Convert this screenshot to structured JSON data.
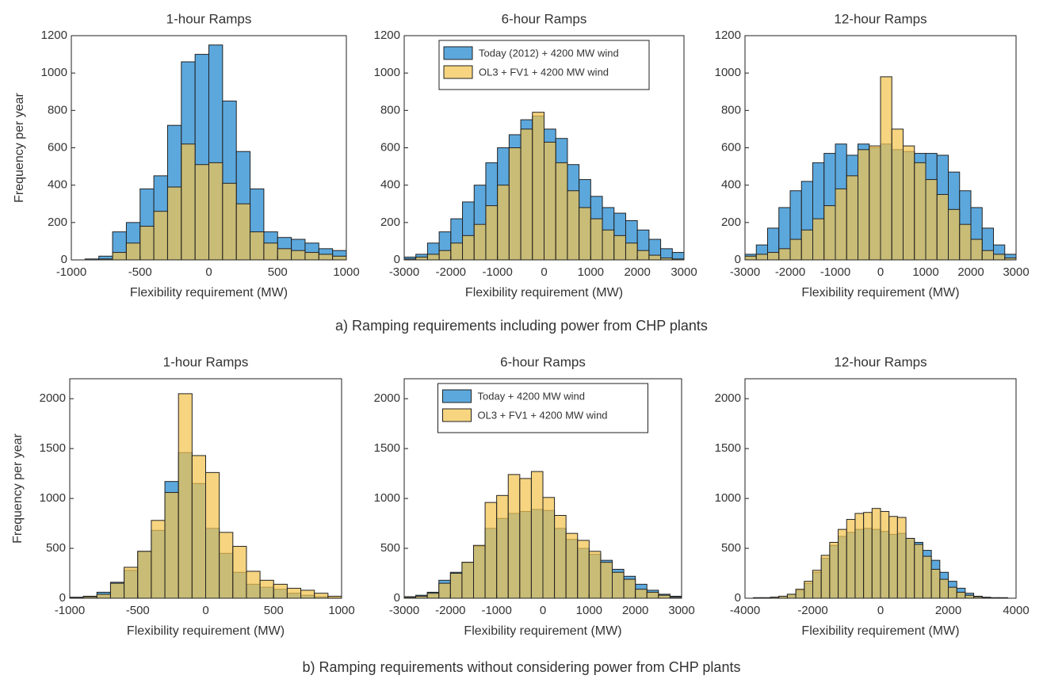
{
  "captions": [
    "a) Ramping requirements including power from CHP plants",
    "b) Ramping requirements without considering power from CHP plants"
  ],
  "chart_data": [
    {
      "type": "histogram",
      "title": "1-hour Ramps",
      "xlabel": "Flexibility requirement (MW)",
      "ylabel": "Frequency per year",
      "xlim": [
        -1000,
        1000
      ],
      "xticks": [
        -1000,
        -500,
        0,
        500,
        1000
      ],
      "ylim": [
        0,
        1200
      ],
      "yticks": [
        0,
        200,
        400,
        600,
        800,
        1000,
        1200
      ],
      "bins": [
        -1000,
        -900,
        -800,
        -700,
        -600,
        -500,
        -400,
        -300,
        -200,
        -100,
        0,
        100,
        200,
        300,
        400,
        500,
        600,
        700,
        800,
        900,
        1000
      ],
      "series": [
        {
          "color": "#4a9ed9",
          "values": [
            0,
            5,
            20,
            150,
            200,
            380,
            450,
            720,
            1060,
            1100,
            1150,
            850,
            580,
            380,
            150,
            120,
            110,
            90,
            60,
            50
          ]
        },
        {
          "color": "#f3c44f",
          "values": [
            0,
            0,
            5,
            40,
            90,
            180,
            260,
            390,
            620,
            510,
            520,
            410,
            300,
            150,
            90,
            60,
            50,
            40,
            30,
            20
          ]
        }
      ]
    },
    {
      "type": "histogram",
      "title": "6-hour Ramps",
      "xlabel": "Flexibility requirement (MW)",
      "xlim": [
        -3000,
        3000
      ],
      "xticks": [
        -3000,
        -2000,
        -1000,
        0,
        1000,
        2000,
        3000
      ],
      "ylim": [
        0,
        1200
      ],
      "yticks": [
        0,
        200,
        400,
        600,
        800,
        1000,
        1200
      ],
      "bins": [
        -3000,
        -2750,
        -2500,
        -2250,
        -2000,
        -1750,
        -1500,
        -1250,
        -1000,
        -750,
        -500,
        -250,
        0,
        250,
        500,
        750,
        1000,
        1250,
        1500,
        1750,
        2000,
        2250,
        2500,
        2750,
        3000
      ],
      "legend": "upper center",
      "series": [
        {
          "name": "Today (2012) + 4200 MW wind",
          "color": "#4a9ed9",
          "values": [
            15,
            30,
            90,
            150,
            220,
            310,
            400,
            520,
            600,
            670,
            750,
            770,
            700,
            650,
            510,
            430,
            340,
            280,
            250,
            210,
            160,
            110,
            60,
            40
          ]
        },
        {
          "name": "OL3 + FV1 + 4200 MW wind",
          "color": "#f3c44f",
          "values": [
            5,
            15,
            30,
            50,
            90,
            130,
            190,
            290,
            400,
            600,
            700,
            790,
            630,
            520,
            370,
            280,
            220,
            160,
            130,
            90,
            50,
            25,
            10,
            5
          ]
        }
      ]
    },
    {
      "type": "histogram",
      "title": "12-hour Ramps",
      "xlabel": "Flexibility requirement (MW)",
      "xlim": [
        -3000,
        3000
      ],
      "xticks": [
        -3000,
        -2000,
        -1000,
        0,
        1000,
        2000,
        3000
      ],
      "ylim": [
        0,
        1200
      ],
      "yticks": [
        0,
        200,
        400,
        600,
        800,
        1000,
        1200
      ],
      "bins": [
        -3000,
        -2750,
        -2500,
        -2250,
        -2000,
        -1750,
        -1500,
        -1250,
        -1000,
        -750,
        -500,
        -250,
        0,
        250,
        500,
        750,
        1000,
        1250,
        1500,
        1750,
        2000,
        2250,
        2500,
        2750,
        3000
      ],
      "series": [
        {
          "color": "#4a9ed9",
          "values": [
            30,
            80,
            170,
            280,
            370,
            420,
            520,
            570,
            620,
            560,
            620,
            600,
            620,
            590,
            580,
            570,
            570,
            560,
            470,
            370,
            280,
            170,
            80,
            30
          ]
        },
        {
          "color": "#f3c44f",
          "values": [
            20,
            30,
            40,
            60,
            110,
            160,
            220,
            290,
            380,
            450,
            590,
            610,
            980,
            700,
            610,
            520,
            430,
            350,
            270,
            190,
            110,
            50,
            30,
            10
          ]
        }
      ]
    },
    {
      "type": "histogram",
      "title": "1-hour Ramps",
      "xlabel": "Flexibility requirement (MW)",
      "ylabel": "Frequency per year",
      "xlim": [
        -1000,
        1000
      ],
      "xticks": [
        -1000,
        -500,
        0,
        500,
        1000
      ],
      "ylim": [
        0,
        2200
      ],
      "yticks": [
        0,
        500,
        1000,
        1500,
        2000
      ],
      "bins": [
        -1000,
        -900,
        -800,
        -700,
        -600,
        -500,
        -400,
        -300,
        -200,
        -100,
        0,
        100,
        200,
        300,
        400,
        500,
        600,
        700,
        800,
        900,
        1000
      ],
      "series": [
        {
          "color": "#4a9ed9",
          "values": [
            10,
            20,
            60,
            160,
            280,
            470,
            680,
            1170,
            1460,
            1150,
            700,
            450,
            260,
            140,
            110,
            90,
            50,
            30,
            15,
            5
          ]
        },
        {
          "color": "#f3c44f",
          "values": [
            5,
            15,
            40,
            150,
            310,
            470,
            780,
            1060,
            2050,
            1430,
            1260,
            660,
            520,
            270,
            180,
            140,
            100,
            80,
            50,
            20
          ]
        }
      ]
    },
    {
      "type": "histogram",
      "title": "6-hour Ramps",
      "xlabel": "Flexibility requirement (MW)",
      "xlim": [
        -3000,
        3000
      ],
      "xticks": [
        -3000,
        -2000,
        -1000,
        0,
        1000,
        2000,
        3000
      ],
      "ylim": [
        0,
        2200
      ],
      "yticks": [
        0,
        500,
        1000,
        1500,
        2000
      ],
      "bins": [
        -3000,
        -2750,
        -2500,
        -2250,
        -2000,
        -1750,
        -1500,
        -1250,
        -1000,
        -750,
        -500,
        -250,
        0,
        250,
        500,
        750,
        1000,
        1250,
        1500,
        1750,
        2000,
        2250,
        2500,
        2750,
        3000
      ],
      "legend": "upper center",
      "series": [
        {
          "name": "Today + 4200 MW wind",
          "color": "#4a9ed9",
          "values": [
            15,
            30,
            60,
            180,
            260,
            360,
            520,
            700,
            800,
            850,
            870,
            890,
            880,
            700,
            590,
            500,
            440,
            380,
            290,
            220,
            140,
            80,
            40,
            20
          ]
        },
        {
          "name": "OL3 + FV1 + 4200 MW wind",
          "color": "#f3c44f",
          "values": [
            10,
            20,
            50,
            150,
            250,
            360,
            530,
            960,
            1030,
            1240,
            1200,
            1270,
            1010,
            830,
            650,
            580,
            470,
            360,
            260,
            190,
            90,
            60,
            30,
            10
          ]
        }
      ]
    },
    {
      "type": "histogram",
      "title": "12-hour Ramps",
      "xlabel": "Flexibility requirement (MW)",
      "xlim": [
        -4000,
        4000
      ],
      "xticks": [
        -4000,
        -2000,
        0,
        2000,
        4000
      ],
      "ylim": [
        0,
        2200
      ],
      "yticks": [
        0,
        500,
        1000,
        1500,
        2000
      ],
      "bins": [
        -4000,
        -3750,
        -3500,
        -3250,
        -3000,
        -2750,
        -2500,
        -2250,
        -2000,
        -1750,
        -1500,
        -1250,
        -1000,
        -750,
        -500,
        -250,
        0,
        250,
        500,
        750,
        1000,
        1250,
        1500,
        1750,
        2000,
        2250,
        2500,
        2750,
        3000,
        3250,
        3500,
        3750,
        4000
      ],
      "series": [
        {
          "color": "#4a9ed9",
          "values": [
            0,
            5,
            5,
            10,
            20,
            40,
            80,
            150,
            260,
            400,
            530,
            620,
            660,
            690,
            700,
            690,
            670,
            640,
            650,
            600,
            560,
            480,
            380,
            260,
            170,
            100,
            50,
            20,
            10,
            5,
            5,
            0
          ]
        },
        {
          "color": "#f3c44f",
          "values": [
            0,
            5,
            5,
            10,
            20,
            40,
            90,
            170,
            280,
            430,
            560,
            690,
            790,
            850,
            860,
            900,
            870,
            820,
            810,
            600,
            540,
            420,
            290,
            190,
            110,
            60,
            30,
            15,
            5,
            5,
            5,
            0
          ]
        }
      ]
    }
  ]
}
